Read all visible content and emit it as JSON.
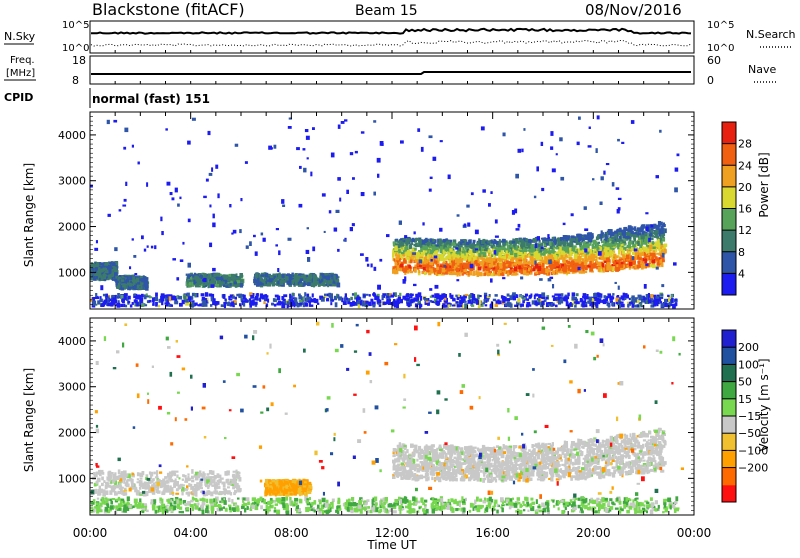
{
  "header": {
    "station": "Blackstone (fitACF)",
    "beam": "Beam 15",
    "date": "08/Nov/2016"
  },
  "params": {
    "left_labels": [
      "N.Sky",
      "Freq.",
      "[MHz]",
      "CPID"
    ],
    "right_labels": [
      "N.Search",
      "Nave"
    ],
    "noise_ticks": [
      "10^5",
      "10^0"
    ],
    "noise_ticks_right": [
      "10^5",
      "10^0"
    ],
    "freq_ticks": [
      "18",
      "8"
    ],
    "nave_ticks": [
      "60",
      "0"
    ],
    "cpid_text": "normal (fast) 151"
  },
  "colors": {
    "power": [
      "#1c1cf0",
      "#2e55a8",
      "#3c7a6c",
      "#58a35a",
      "#d8d830",
      "#f0a020",
      "#f06010",
      "#e82010"
    ],
    "velocity": [
      "#ff1010",
      "#ff6a00",
      "#ffa000",
      "#f0c030",
      "#c8c8c8",
      "#78d850",
      "#40a840",
      "#207050",
      "#2050a0",
      "#2020d0"
    ],
    "noise_line": "#000000",
    "text": "#000000"
  },
  "chart_data": [
    {
      "type": "heatmap",
      "panel": "power",
      "ylabel": "Slant Range [km]",
      "xlabel": "Time UT",
      "ylim": [
        200,
        4500
      ],
      "xlim": [
        0,
        24
      ],
      "yticks": [
        "1000",
        "2000",
        "3000",
        "4000"
      ],
      "xticks": [
        "00:00",
        "04:00",
        "08:00",
        "12:00",
        "16:00",
        "20:00",
        "00:00"
      ],
      "colorbar": {
        "label": "Power [dB]",
        "ticks": [
          "4",
          "8",
          "12",
          "16",
          "20",
          "24",
          "28"
        ],
        "range": [
          0,
          32
        ]
      },
      "features": [
        {
          "time": [
            0,
            1.0
          ],
          "range": [
            850,
            1200
          ],
          "value": 8
        },
        {
          "time": [
            1.0,
            2.2
          ],
          "range": [
            650,
            900
          ],
          "value": 8
        },
        {
          "time": [
            3.8,
            6.0
          ],
          "range": [
            700,
            950
          ],
          "value": 10
        },
        {
          "time": [
            6.5,
            9.8
          ],
          "range": [
            720,
            950
          ],
          "value": 9
        },
        {
          "time": [
            12.0,
            22.8
          ],
          "range": [
            900,
            2300
          ],
          "value": 26
        }
      ]
    },
    {
      "type": "heatmap",
      "panel": "velocity",
      "ylabel": "Slant Range [km]",
      "xlabel": "Time UT",
      "ylim": [
        200,
        4500
      ],
      "xlim": [
        0,
        24
      ],
      "yticks": [
        "1000",
        "2000",
        "3000",
        "4000"
      ],
      "xticks": [
        "00:00",
        "04:00",
        "08:00",
        "12:00",
        "16:00",
        "20:00",
        "00:00"
      ],
      "colorbar": {
        "label": "Velocity [m s⁻¹]",
        "ticks": [
          "200",
          "100",
          "50",
          "15",
          "−15",
          "−50",
          "−100",
          "−200"
        ]
      },
      "features": [
        {
          "time": [
            0,
            5.9
          ],
          "range": [
            650,
            1150
          ],
          "value": 0
        },
        {
          "time": [
            6.9,
            8.7
          ],
          "range": [
            650,
            950
          ],
          "value": -60
        },
        {
          "time": [
            12.0,
            22.8
          ],
          "range": [
            900,
            2300
          ],
          "value": 0
        }
      ]
    }
  ]
}
